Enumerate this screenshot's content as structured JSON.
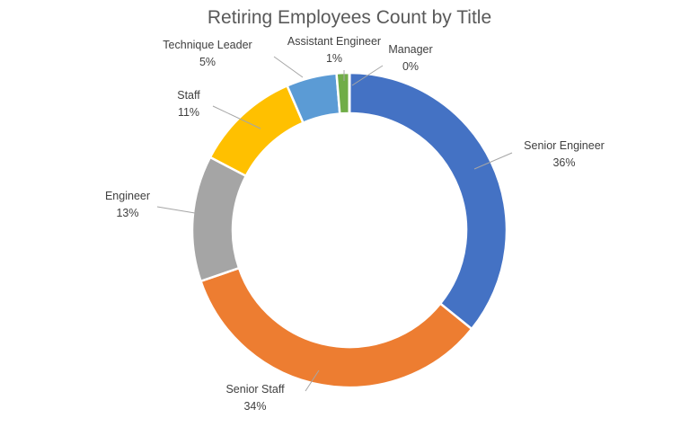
{
  "chart_data": {
    "type": "pie",
    "variant": "doughnut",
    "title": "Retiring Employees Count by Title",
    "slices": [
      {
        "label": "Senior Engineer",
        "percent_label": "36%",
        "value": 36.0,
        "color": "#4472C4"
      },
      {
        "label": "Senior Staff",
        "percent_label": "34%",
        "value": 34.1,
        "color": "#ED7D31"
      },
      {
        "label": "Engineer",
        "percent_label": "13%",
        "value": 13.0,
        "color": "#A5A5A5"
      },
      {
        "label": "Staff",
        "percent_label": "11%",
        "value": 10.9,
        "color": "#FFC000"
      },
      {
        "label": "Technique Leader",
        "percent_label": "5%",
        "value": 5.2,
        "color": "#5B9BD5"
      },
      {
        "label": "Assistant Engineer",
        "percent_label": "1%",
        "value": 1.3,
        "color": "#70AD47"
      },
      {
        "label": "Manager",
        "percent_label": "0%",
        "value": 0.02,
        "color": "#264478"
      }
    ],
    "legend": "none"
  }
}
